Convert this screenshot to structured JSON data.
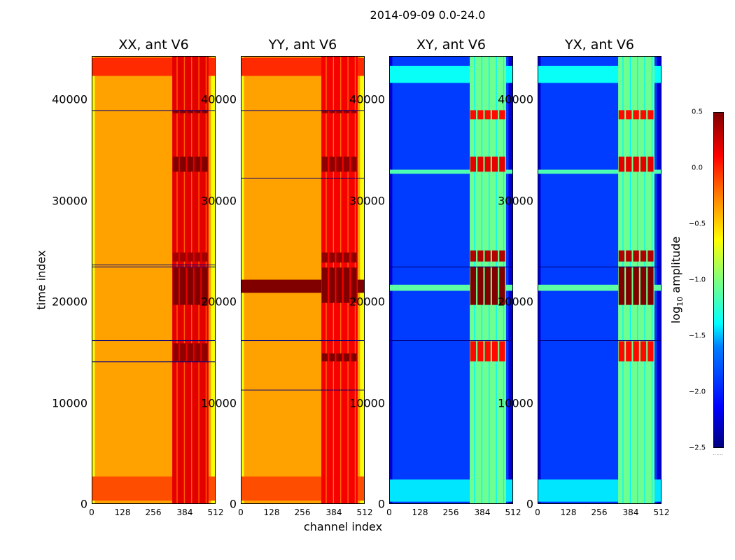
{
  "chart_data": {
    "type": "heatmap",
    "title": "2014-09-09 0.0-24.0",
    "xlabel": "channel index",
    "ylabel": "time index",
    "x_range": [
      0,
      512
    ],
    "y_range": [
      0,
      44400
    ],
    "x_ticks": [
      "0",
      "128",
      "256",
      "384",
      "512"
    ],
    "y_ticks": [
      "0",
      "10000",
      "20000",
      "30000",
      "40000"
    ],
    "x_tick_values": [
      0,
      128,
      256,
      384,
      512
    ],
    "y_tick_values": [
      0,
      10000,
      20000,
      30000,
      40000
    ],
    "panels": [
      {
        "title": "XX, ant V6",
        "base_value": -0.35,
        "rfi_columns": {
          "from": 330,
          "to": 480,
          "value": 0.2
        },
        "bright_rows": [
          {
            "from": 42500,
            "to": 44300,
            "value": 0.0
          },
          {
            "from": 400,
            "to": 2800,
            "value": -0.1
          }
        ],
        "events": [
          {
            "from": 38800,
            "to": 39100,
            "value": 0.5
          },
          {
            "from": 33000,
            "to": 34500,
            "value": 0.5
          },
          {
            "from": 24100,
            "to": 25000,
            "value": 0.4
          },
          {
            "from": 19800,
            "to": 23500,
            "value": 0.5
          },
          {
            "from": 14200,
            "to": 16000,
            "value": 0.45
          }
        ],
        "dark_lines": [
          39100,
          23600,
          23800,
          16300,
          14200
        ]
      },
      {
        "title": "YY, ant V6",
        "base_value": -0.35,
        "rfi_columns": {
          "from": 330,
          "to": 480,
          "value": 0.15
        },
        "bright_rows": [
          {
            "from": 42500,
            "to": 44300,
            "value": 0.0
          },
          {
            "from": 400,
            "to": 2800,
            "value": -0.1
          },
          {
            "from": 21000,
            "to": 22300,
            "value": 0.5
          }
        ],
        "events": [
          {
            "from": 38800,
            "to": 39100,
            "value": 0.45
          },
          {
            "from": 33000,
            "to": 34500,
            "value": 0.45
          },
          {
            "from": 24000,
            "to": 25000,
            "value": 0.45
          },
          {
            "from": 20000,
            "to": 23500,
            "value": 0.5
          },
          {
            "from": 14200,
            "to": 15000,
            "value": 0.5
          }
        ],
        "dark_lines": [
          39100,
          32400,
          16300,
          11400
        ]
      },
      {
        "title": "XY, ant V6",
        "base_value": -1.95,
        "rfi_columns": {
          "from": 330,
          "to": 480,
          "value": -1.05
        },
        "bright_rows": [
          {
            "from": 41800,
            "to": 43500,
            "value": -1.35
          },
          {
            "from": 32800,
            "to": 33200,
            "value": -1.15
          },
          {
            "from": 21200,
            "to": 21800,
            "value": -1.1
          },
          {
            "from": 300,
            "to": 2500,
            "value": -1.45
          }
        ],
        "events": [
          {
            "from": 38200,
            "to": 39100,
            "value": 0.1
          },
          {
            "from": 33000,
            "to": 34500,
            "value": 0.2
          },
          {
            "from": 24100,
            "to": 25200,
            "value": 0.35
          },
          {
            "from": 19800,
            "to": 23600,
            "value": 0.5
          },
          {
            "from": 14200,
            "to": 16200,
            "value": 0.1
          }
        ],
        "dark_lines": [
          23600,
          16300
        ]
      },
      {
        "title": "YX, ant V6",
        "base_value": -1.95,
        "rfi_columns": {
          "from": 330,
          "to": 480,
          "value": -1.05
        },
        "bright_rows": [
          {
            "from": 41800,
            "to": 43500,
            "value": -1.35
          },
          {
            "from": 32800,
            "to": 33200,
            "value": -1.15
          },
          {
            "from": 21200,
            "to": 21800,
            "value": -1.1
          },
          {
            "from": 300,
            "to": 2500,
            "value": -1.45
          }
        ],
        "events": [
          {
            "from": 38200,
            "to": 39100,
            "value": 0.1
          },
          {
            "from": 33000,
            "to": 34500,
            "value": 0.2
          },
          {
            "from": 24100,
            "to": 25200,
            "value": 0.35
          },
          {
            "from": 19800,
            "to": 23600,
            "value": 0.5
          },
          {
            "from": 14200,
            "to": 16200,
            "value": 0.1
          }
        ],
        "dark_lines": [
          23600,
          16300
        ]
      }
    ],
    "colorbar": {
      "label_prefix": "log",
      "label_subscript": "10",
      "label_suffix": " amplitude",
      "range": [
        -2.5,
        0.5
      ],
      "ticks": [
        "0.5",
        "0.0",
        "−0.5",
        "−1.0",
        "−1.5",
        "−2.0",
        "−2.5"
      ],
      "tick_values": [
        0.5,
        0.0,
        -0.5,
        -1.0,
        -1.5,
        -2.0,
        -2.5
      ],
      "colormap": "jet"
    }
  }
}
